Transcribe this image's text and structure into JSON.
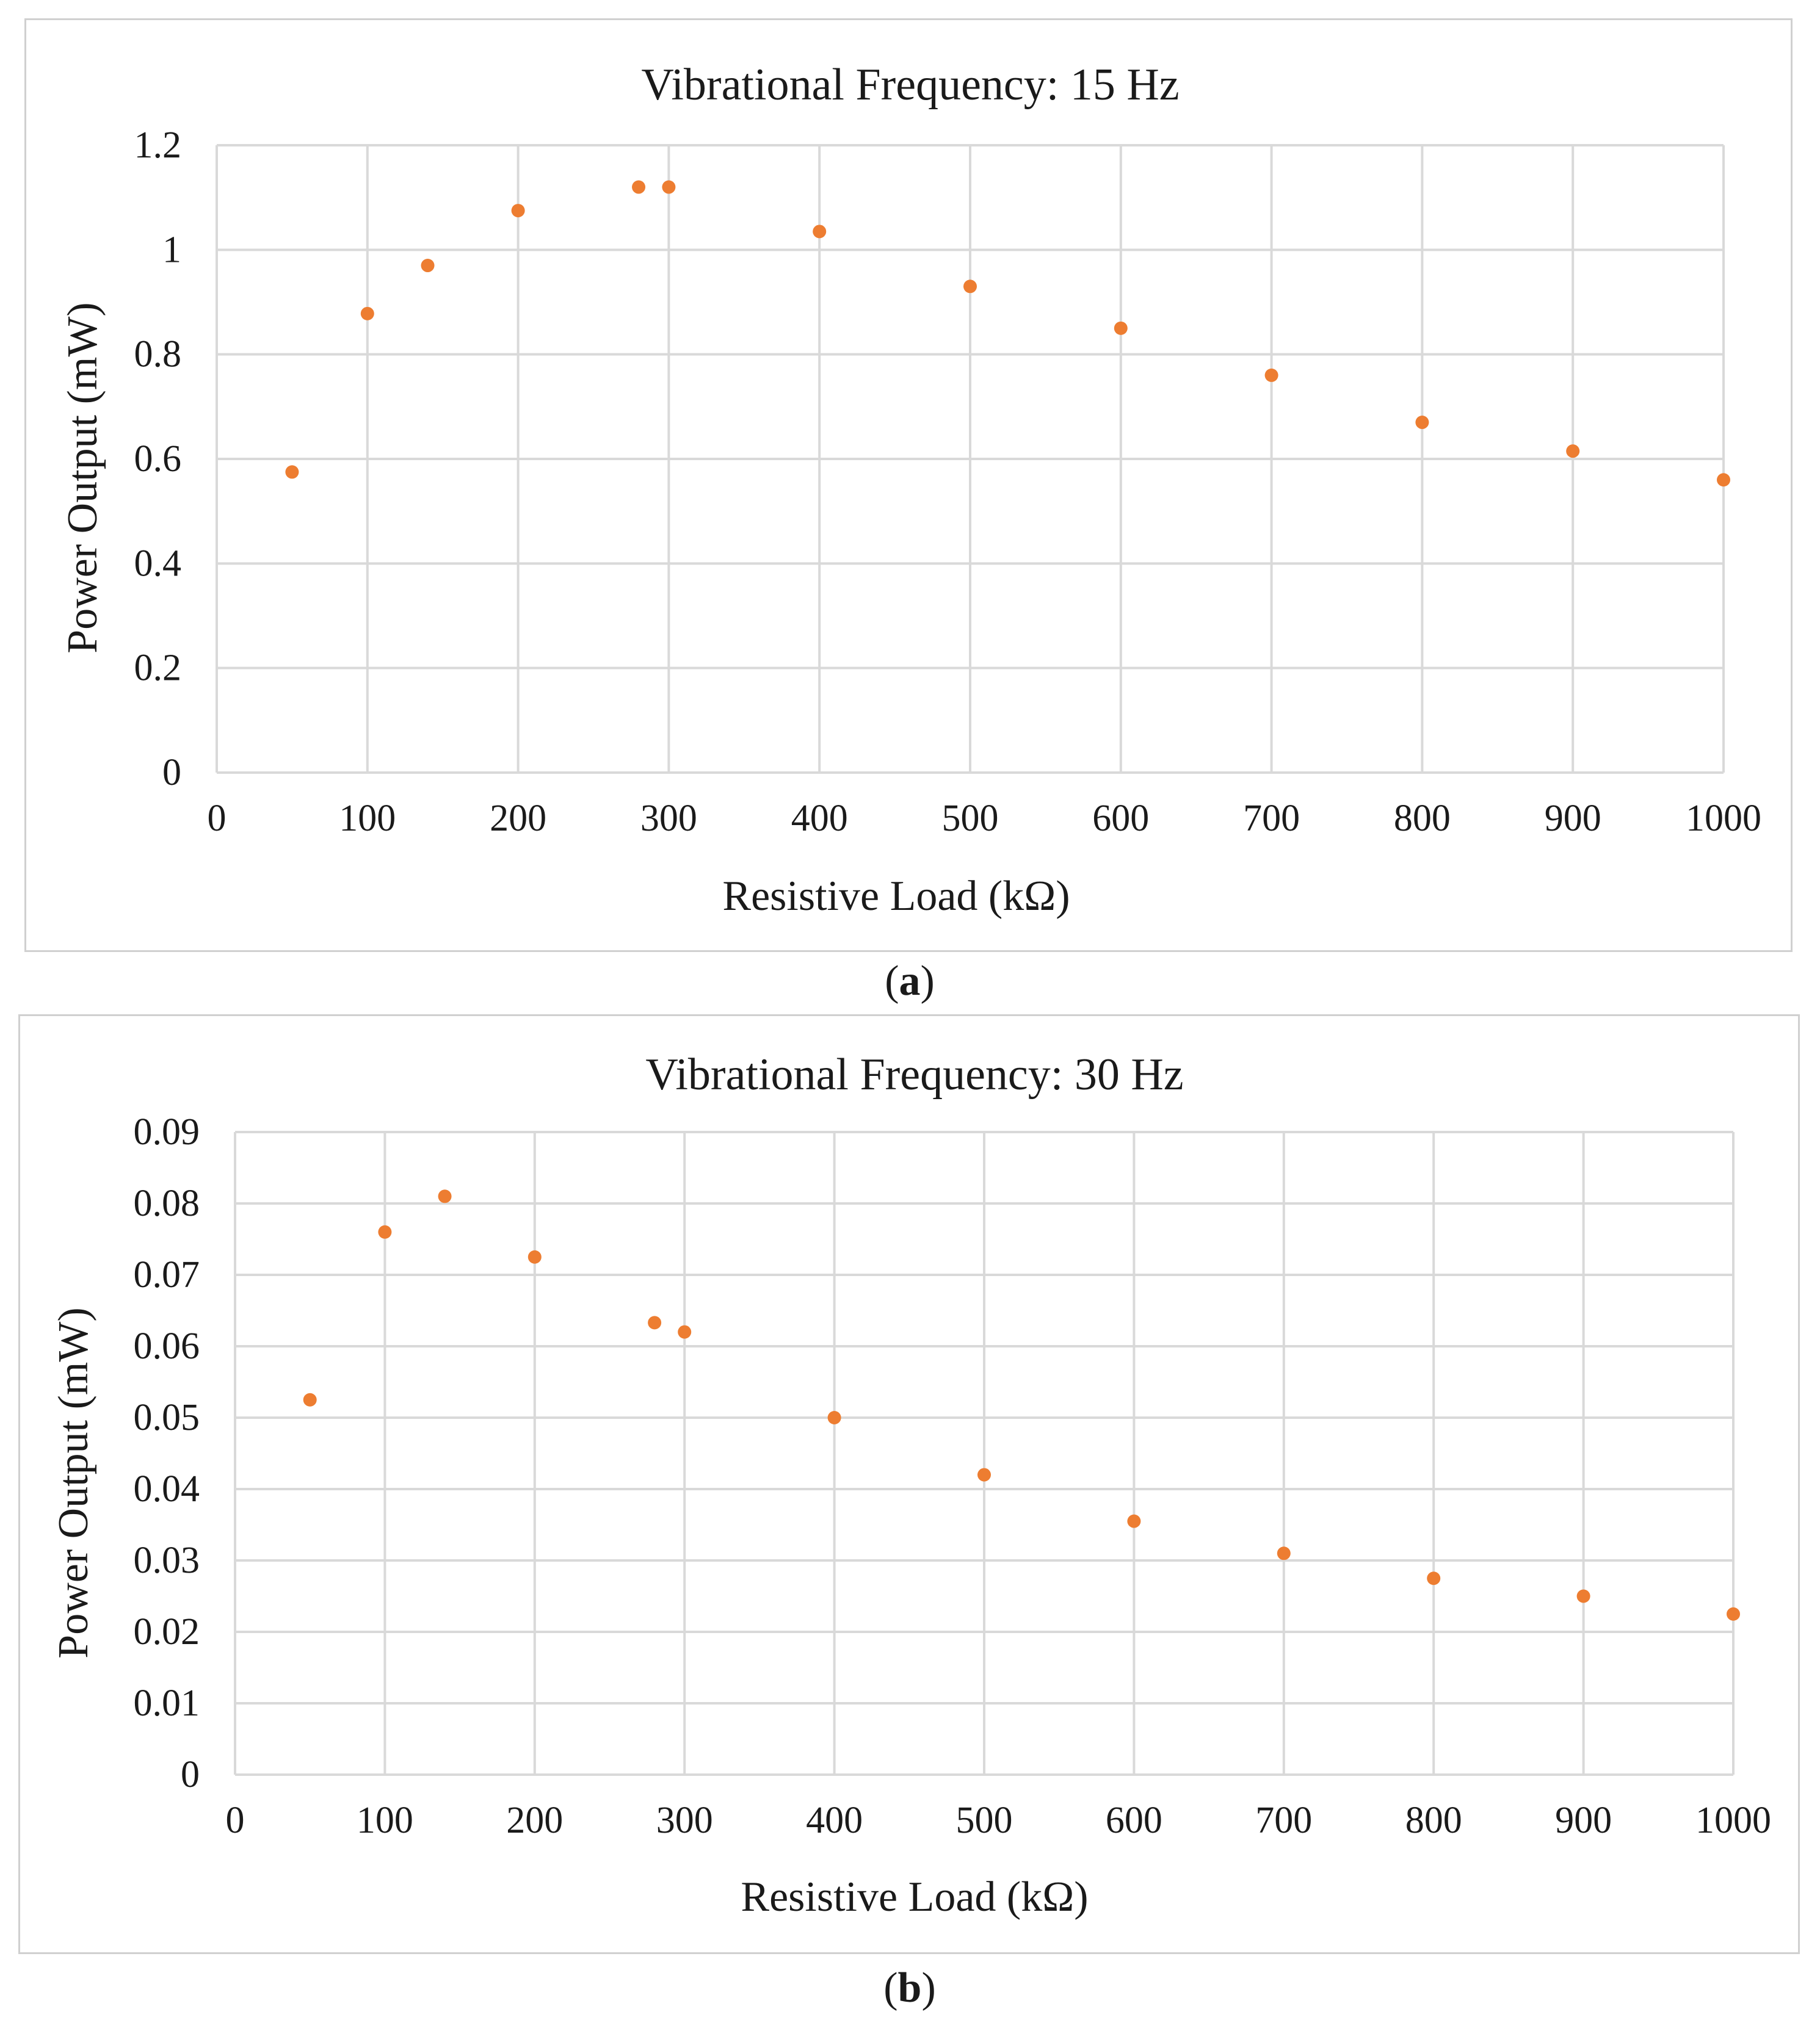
{
  "chart_data": [
    {
      "type": "scatter",
      "title": "Vibrational Frequency: 15 Hz",
      "xlabel": "Resistive Load (kΩ)",
      "ylabel": "Power Output (mW)",
      "xlim": [
        0,
        1000
      ],
      "ylim": [
        0,
        1.2
      ],
      "x_ticks": [
        0,
        100,
        200,
        300,
        400,
        500,
        600,
        700,
        800,
        900,
        1000
      ],
      "y_ticks": [
        0,
        0.2,
        0.4,
        0.6,
        0.8,
        1,
        1.2
      ],
      "y_tick_labels": [
        "0",
        "0.2",
        "0.4",
        "0.6",
        "0.8",
        "1",
        "1.2"
      ],
      "marker_color": "#ed7d31",
      "grid": true,
      "points": [
        {
          "x": 50,
          "y": 0.575
        },
        {
          "x": 100,
          "y": 0.878
        },
        {
          "x": 140,
          "y": 0.97
        },
        {
          "x": 200,
          "y": 1.075
        },
        {
          "x": 280,
          "y": 1.12
        },
        {
          "x": 300,
          "y": 1.12
        },
        {
          "x": 400,
          "y": 1.035
        },
        {
          "x": 500,
          "y": 0.93
        },
        {
          "x": 600,
          "y": 0.85
        },
        {
          "x": 700,
          "y": 0.76
        },
        {
          "x": 800,
          "y": 0.67
        },
        {
          "x": 900,
          "y": 0.615
        },
        {
          "x": 1000,
          "y": 0.56
        }
      ],
      "caption_letter": "a"
    },
    {
      "type": "scatter",
      "title": "Vibrational Frequency: 30 Hz",
      "xlabel": "Resistive Load (kΩ)",
      "ylabel": "Power Output (mW)",
      "xlim": [
        0,
        1000
      ],
      "ylim": [
        0,
        0.09
      ],
      "x_ticks": [
        0,
        100,
        200,
        300,
        400,
        500,
        600,
        700,
        800,
        900,
        1000
      ],
      "y_ticks": [
        0,
        0.01,
        0.02,
        0.03,
        0.04,
        0.05,
        0.06,
        0.07,
        0.08,
        0.09
      ],
      "y_tick_labels": [
        "0",
        "0.01",
        "0.02",
        "0.03",
        "0.04",
        "0.05",
        "0.06",
        "0.07",
        "0.08",
        "0.09"
      ],
      "marker_color": "#ed7d31",
      "grid": true,
      "points": [
        {
          "x": 50,
          "y": 0.0525
        },
        {
          "x": 100,
          "y": 0.076
        },
        {
          "x": 140,
          "y": 0.081
        },
        {
          "x": 200,
          "y": 0.0725
        },
        {
          "x": 280,
          "y": 0.0633
        },
        {
          "x": 300,
          "y": 0.062
        },
        {
          "x": 400,
          "y": 0.05
        },
        {
          "x": 500,
          "y": 0.042
        },
        {
          "x": 600,
          "y": 0.0355
        },
        {
          "x": 700,
          "y": 0.031
        },
        {
          "x": 800,
          "y": 0.0275
        },
        {
          "x": 900,
          "y": 0.025
        },
        {
          "x": 1000,
          "y": 0.0225
        }
      ],
      "caption_letter": "b"
    }
  ]
}
